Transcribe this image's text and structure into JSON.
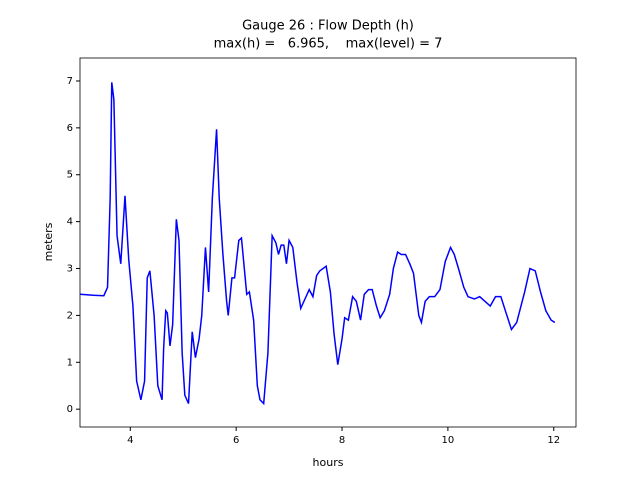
{
  "chart_data": {
    "type": "line",
    "title": "Gauge 26 : Flow Depth (h)",
    "subtitle": "max(h) =   6.965,    max(level) = 7",
    "xlabel": "hours",
    "ylabel": "meters",
    "xlim": [
      3.05,
      12.42
    ],
    "ylim": [
      -0.38,
      7.49
    ],
    "xticks": [
      4,
      6,
      8,
      10,
      12
    ],
    "yticks": [
      0,
      1,
      2,
      3,
      4,
      5,
      6,
      7
    ],
    "x": [
      3.05,
      3.3,
      3.5,
      3.57,
      3.62,
      3.65,
      3.69,
      3.75,
      3.82,
      3.9,
      3.97,
      4.05,
      4.12,
      4.2,
      4.27,
      4.32,
      4.37,
      4.45,
      4.52,
      4.6,
      4.63,
      4.67,
      4.7,
      4.75,
      4.8,
      4.87,
      4.92,
      4.98,
      5.03,
      5.1,
      5.17,
      5.23,
      5.3,
      5.35,
      5.42,
      5.48,
      5.55,
      5.63,
      5.68,
      5.75,
      5.82,
      5.85,
      5.92,
      5.97,
      6.05,
      6.1,
      6.2,
      6.25,
      6.33,
      6.4,
      6.45,
      6.52,
      6.6,
      6.68,
      6.75,
      6.8,
      6.85,
      6.9,
      6.95,
      7.0,
      7.07,
      7.15,
      7.22,
      7.3,
      7.38,
      7.45,
      7.52,
      7.58,
      7.7,
      7.78,
      7.85,
      7.92,
      8.0,
      8.05,
      8.12,
      8.2,
      8.27,
      8.35,
      8.42,
      8.5,
      8.57,
      8.65,
      8.72,
      8.8,
      8.9,
      8.97,
      9.05,
      9.12,
      9.2,
      9.28,
      9.35,
      9.45,
      9.5,
      9.57,
      9.65,
      9.75,
      9.85,
      9.95,
      10.05,
      10.12,
      10.2,
      10.3,
      10.38,
      10.5,
      10.6,
      10.7,
      10.8,
      10.9,
      11.0,
      11.1,
      11.2,
      11.3,
      11.45,
      11.55,
      11.65,
      11.75,
      11.85,
      11.95,
      12.02
    ],
    "series": [
      {
        "name": "h",
        "color": "#0000ff",
        "values": [
          2.45,
          2.43,
          2.42,
          2.6,
          4.5,
          6.97,
          6.6,
          3.7,
          3.1,
          4.55,
          3.2,
          2.2,
          0.6,
          0.2,
          0.6,
          2.8,
          2.95,
          2.0,
          0.5,
          0.2,
          1.3,
          2.1,
          2.05,
          1.35,
          1.8,
          4.05,
          3.6,
          1.2,
          0.3,
          0.12,
          1.65,
          1.1,
          1.5,
          2.0,
          3.45,
          2.5,
          4.5,
          5.97,
          4.5,
          3.3,
          2.3,
          2.0,
          2.8,
          2.8,
          3.6,
          3.65,
          2.45,
          2.5,
          1.9,
          0.5,
          0.2,
          0.12,
          1.2,
          3.7,
          3.55,
          3.3,
          3.5,
          3.5,
          3.1,
          3.6,
          3.45,
          2.7,
          2.15,
          2.35,
          2.55,
          2.4,
          2.85,
          2.95,
          3.05,
          2.5,
          1.6,
          0.95,
          1.5,
          1.95,
          1.9,
          2.4,
          2.3,
          1.9,
          2.45,
          2.55,
          2.55,
          2.2,
          1.95,
          2.1,
          2.45,
          3.0,
          3.35,
          3.3,
          3.3,
          3.1,
          2.9,
          2.0,
          1.85,
          2.3,
          2.4,
          2.4,
          2.55,
          3.15,
          3.45,
          3.3,
          3.0,
          2.6,
          2.4,
          2.35,
          2.4,
          2.3,
          2.2,
          2.4,
          2.4,
          2.05,
          1.7,
          1.85,
          2.5,
          3.0,
          2.95,
          2.5,
          2.1,
          1.9,
          1.85
        ]
      }
    ]
  }
}
